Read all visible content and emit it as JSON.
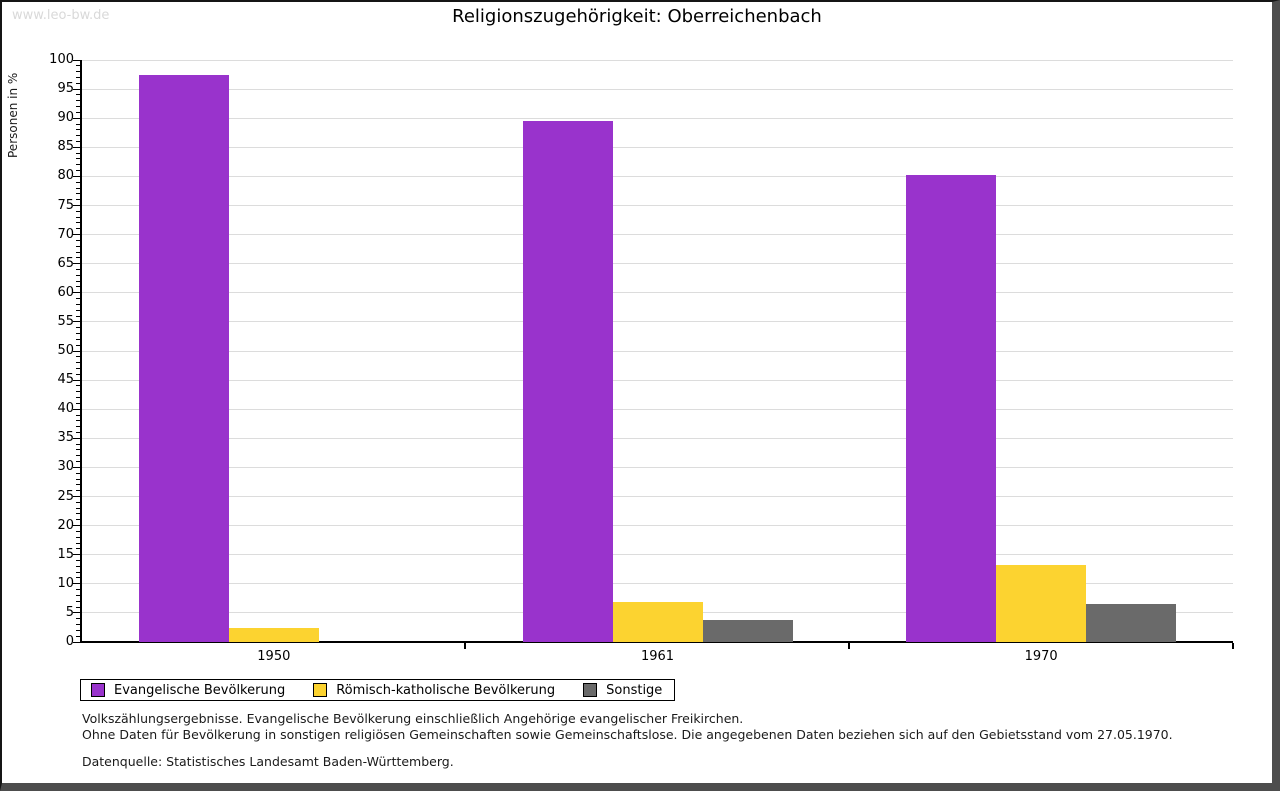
{
  "watermark": "www.leo-bw.de",
  "title": "Religionszugehörigkeit: Oberreichenbach",
  "chart_data": {
    "type": "bar",
    "title": "Religionszugehörigkeit: Oberreichenbach",
    "ylabel": "Personen in %",
    "xlabel": "",
    "ylim": [
      0,
      100
    ],
    "ytick_step": 5,
    "minor_tick_step": 1,
    "grid": true,
    "legend_position": "bottom-left",
    "categories": [
      "1950",
      "1961",
      "1970"
    ],
    "series": [
      {
        "name": "Evangelische Bevölkerung",
        "color": "#9933cc",
        "values": [
          97.4,
          89.5,
          80.3
        ]
      },
      {
        "name": "Römisch-katholische Bevölkerung",
        "color": "#fcd330",
        "values": [
          2.4,
          6.9,
          13.2
        ]
      },
      {
        "name": "Sonstige",
        "color": "#6a6a6a",
        "values": [
          0,
          3.8,
          6.6
        ]
      }
    ]
  },
  "footnotes": {
    "line1": "Volkszählungsergebnisse. Evangelische Bevölkerung einschließlich Angehörige evangelischer Freikirchen.",
    "line2": "Ohne Daten für Bevölkerung in sonstigen religiösen Gemeinschaften sowie Gemeinschaftslose. Die angegebenen Daten beziehen sich auf den Gebietsstand vom 27.05.1970.",
    "source": "Datenquelle: Statistisches Landesamt Baden-Württemberg."
  },
  "colors": {
    "grid": "#dcdcdc",
    "axis": "#000000",
    "watermark": "#d9d9d9",
    "frame_dark": "#4d4d4d"
  }
}
